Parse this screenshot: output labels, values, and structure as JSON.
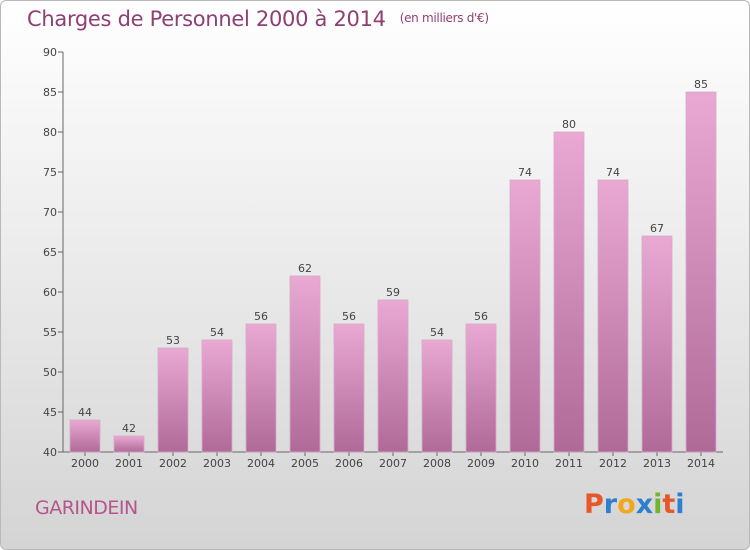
{
  "header": {
    "title": "Charges de Personnel 2000 à 2014",
    "subtitle": "(en milliers d'€)"
  },
  "footer": {
    "town": "GARINDEIN",
    "logo": "Proxiti"
  },
  "colors": {
    "title": "#8f3f73",
    "bar_top": "#e9a9d3",
    "bar_bottom": "#b06a98",
    "logo_letters": [
      "#e7572c",
      "#2f7fd0",
      "#f2a81d",
      "#2f7fd0",
      "#6fb52e",
      "#e7572c",
      "#2f7fd0"
    ]
  },
  "chart_data": {
    "type": "bar",
    "categories": [
      "2000",
      "2001",
      "2002",
      "2003",
      "2004",
      "2005",
      "2006",
      "2007",
      "2008",
      "2009",
      "2010",
      "2011",
      "2012",
      "2013",
      "2014"
    ],
    "values": [
      44,
      42,
      53,
      54,
      56,
      62,
      56,
      59,
      54,
      56,
      74,
      80,
      74,
      67,
      85
    ],
    "title": "Charges de Personnel 2000 à 2014",
    "subtitle": "(en milliers d'€)",
    "xlabel": "",
    "ylabel": "",
    "ylim": [
      40,
      90
    ],
    "yticks": [
      40,
      45,
      50,
      55,
      60,
      65,
      70,
      75,
      80,
      85,
      90
    ],
    "grid": false,
    "data_labels": true
  }
}
